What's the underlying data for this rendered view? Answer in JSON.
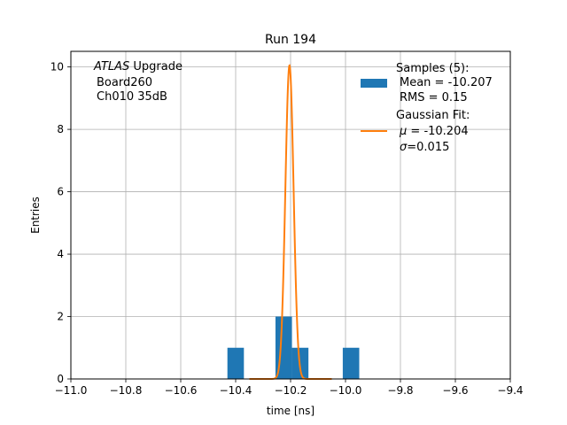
{
  "chart_data": {
    "type": "bar",
    "title": "Run 194",
    "xlabel": "time [ns]",
    "ylabel": "Entries",
    "xlim": [
      -11.0,
      -9.4
    ],
    "ylim": [
      0,
      10.5
    ],
    "xticks": [
      -11.0,
      -10.8,
      -10.6,
      -10.4,
      -10.2,
      -10.0,
      -9.8,
      -9.6,
      -9.4
    ],
    "xtick_labels": [
      "−11.0",
      "−10.8",
      "−10.6",
      "−10.4",
      "−10.2",
      "−10.0",
      "−9.8",
      "−9.6",
      "−9.4"
    ],
    "yticks": [
      0,
      2,
      4,
      6,
      8,
      10
    ],
    "ytick_labels": [
      "0",
      "2",
      "4",
      "6",
      "8",
      "10"
    ],
    "grid": true,
    "histogram": {
      "color": "#1f77b4",
      "bins": [
        {
          "x0": -10.43,
          "x1": -10.37,
          "count": 1
        },
        {
          "x0": -10.255,
          "x1": -10.195,
          "count": 2
        },
        {
          "x0": -10.195,
          "x1": -10.135,
          "count": 1
        },
        {
          "x0": -10.01,
          "x1": -9.95,
          "count": 1
        }
      ]
    },
    "gaussian_fit": {
      "color": "#ff7f0e",
      "mu": -10.204,
      "sigma": 0.015,
      "amplitude": 10.05,
      "x_range": [
        -10.35,
        -10.05
      ]
    },
    "annotation": {
      "line1_italic": "ATLAS",
      "line1_rest": " Upgrade",
      "line2": "Board260",
      "line3": "Ch010 35dB"
    },
    "legend": {
      "placement": "top-right",
      "entry1": {
        "title": "Samples (5):",
        "line2": "Mean = -10.207",
        "line3": "RMS = 0.15"
      },
      "entry2": {
        "title": "Gaussian Fit:",
        "mu_symbol": "μ",
        "mu_value": " = -10.204",
        "sigma_symbol": "σ",
        "sigma_value": "=0.015"
      }
    }
  }
}
